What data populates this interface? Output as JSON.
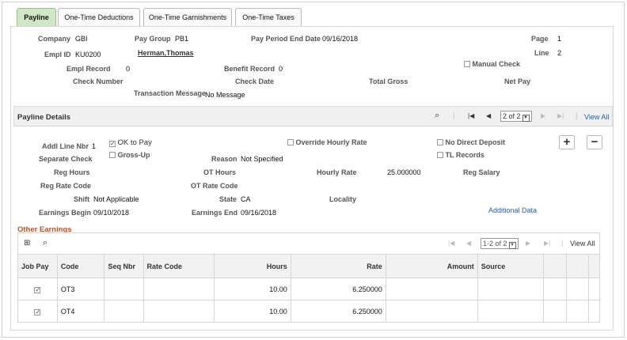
{
  "tabs": [
    {
      "label": "Payline",
      "active": true
    },
    {
      "label": "One-Time Deductions",
      "active": false
    },
    {
      "label": "One-Time Garnishments",
      "active": false
    },
    {
      "label": "One-Time Taxes",
      "active": false
    }
  ],
  "header": {
    "company_label": "Company",
    "company": "GBI",
    "paygroup_label": "Pay Group",
    "paygroup": "PB1",
    "ppend_label": "Pay Period End Date",
    "ppend": "09/16/2018",
    "page_label": "Page",
    "page": "1",
    "emplid_label": "Empl ID",
    "emplid": "KU0200",
    "name": "Herman,Thomas",
    "line_label": "Line",
    "line": "2",
    "emplrec_label": "Empl Record",
    "emplrec": "0",
    "benrec_label": "Benefit Record",
    "benrec": "0",
    "manual_check_label": "Manual Check",
    "checknbr_label": "Check Number",
    "checkdate_label": "Check Date",
    "totalgross_label": "Total Gross",
    "netpay_label": "Net Pay",
    "txnmsg_label": "Transaction Message",
    "txnmsg": "No Message"
  },
  "details": {
    "title": "Payline Details",
    "pager": "2 of 2",
    "view_all": "View All",
    "addl_label": "Addl Line Nbr",
    "addl": "1",
    "ok_to_pay": "OK to Pay",
    "override_hourly": "Override Hourly Rate",
    "no_direct_deposit": "No Direct Deposit",
    "sep_check_label": "Separate Check",
    "gross_up": "Gross-Up",
    "reason_label": "Reason",
    "reason": "Not Specified",
    "tl_records": "TL Records",
    "reghours_label": "Reg Hours",
    "othours_label": "OT Hours",
    "hourlyrate_label": "Hourly Rate",
    "hourlyrate": "25.000000",
    "regsalary_label": "Reg Salary",
    "regratecode_label": "Reg Rate Code",
    "otratecode_label": "OT Rate Code",
    "shift_label": "Shift",
    "shift": "Not Applicable",
    "state_label": "State",
    "state": "CA",
    "locality_label": "Locality",
    "earnbegin_label": "Earnings Begin",
    "earnbegin": "09/10/2018",
    "earnend_label": "Earnings End",
    "earnend": "09/16/2018",
    "additional_data": "Additional Data"
  },
  "other_earnings": {
    "title": "Other Earnings",
    "pager": "1-2 of 2",
    "view_all": "View All",
    "columns": [
      "Job Pay",
      "Code",
      "Seq Nbr",
      "Rate Code",
      "Hours",
      "Rate",
      "Amount",
      "Source"
    ],
    "rows": [
      {
        "job_pay": "✓",
        "code": "OT3",
        "seq": "",
        "ratecode": "",
        "hours": "10.00",
        "rate": "6.250000",
        "amount": "",
        "source": ""
      },
      {
        "job_pay": "✓",
        "code": "OT4",
        "seq": "",
        "ratecode": "",
        "hours": "10.00",
        "rate": "6.250000",
        "amount": "",
        "source": ""
      }
    ]
  },
  "colors": {
    "active_tab": "#cfe6c7",
    "link": "#2a5ea8",
    "section_title": "#b8532a"
  }
}
